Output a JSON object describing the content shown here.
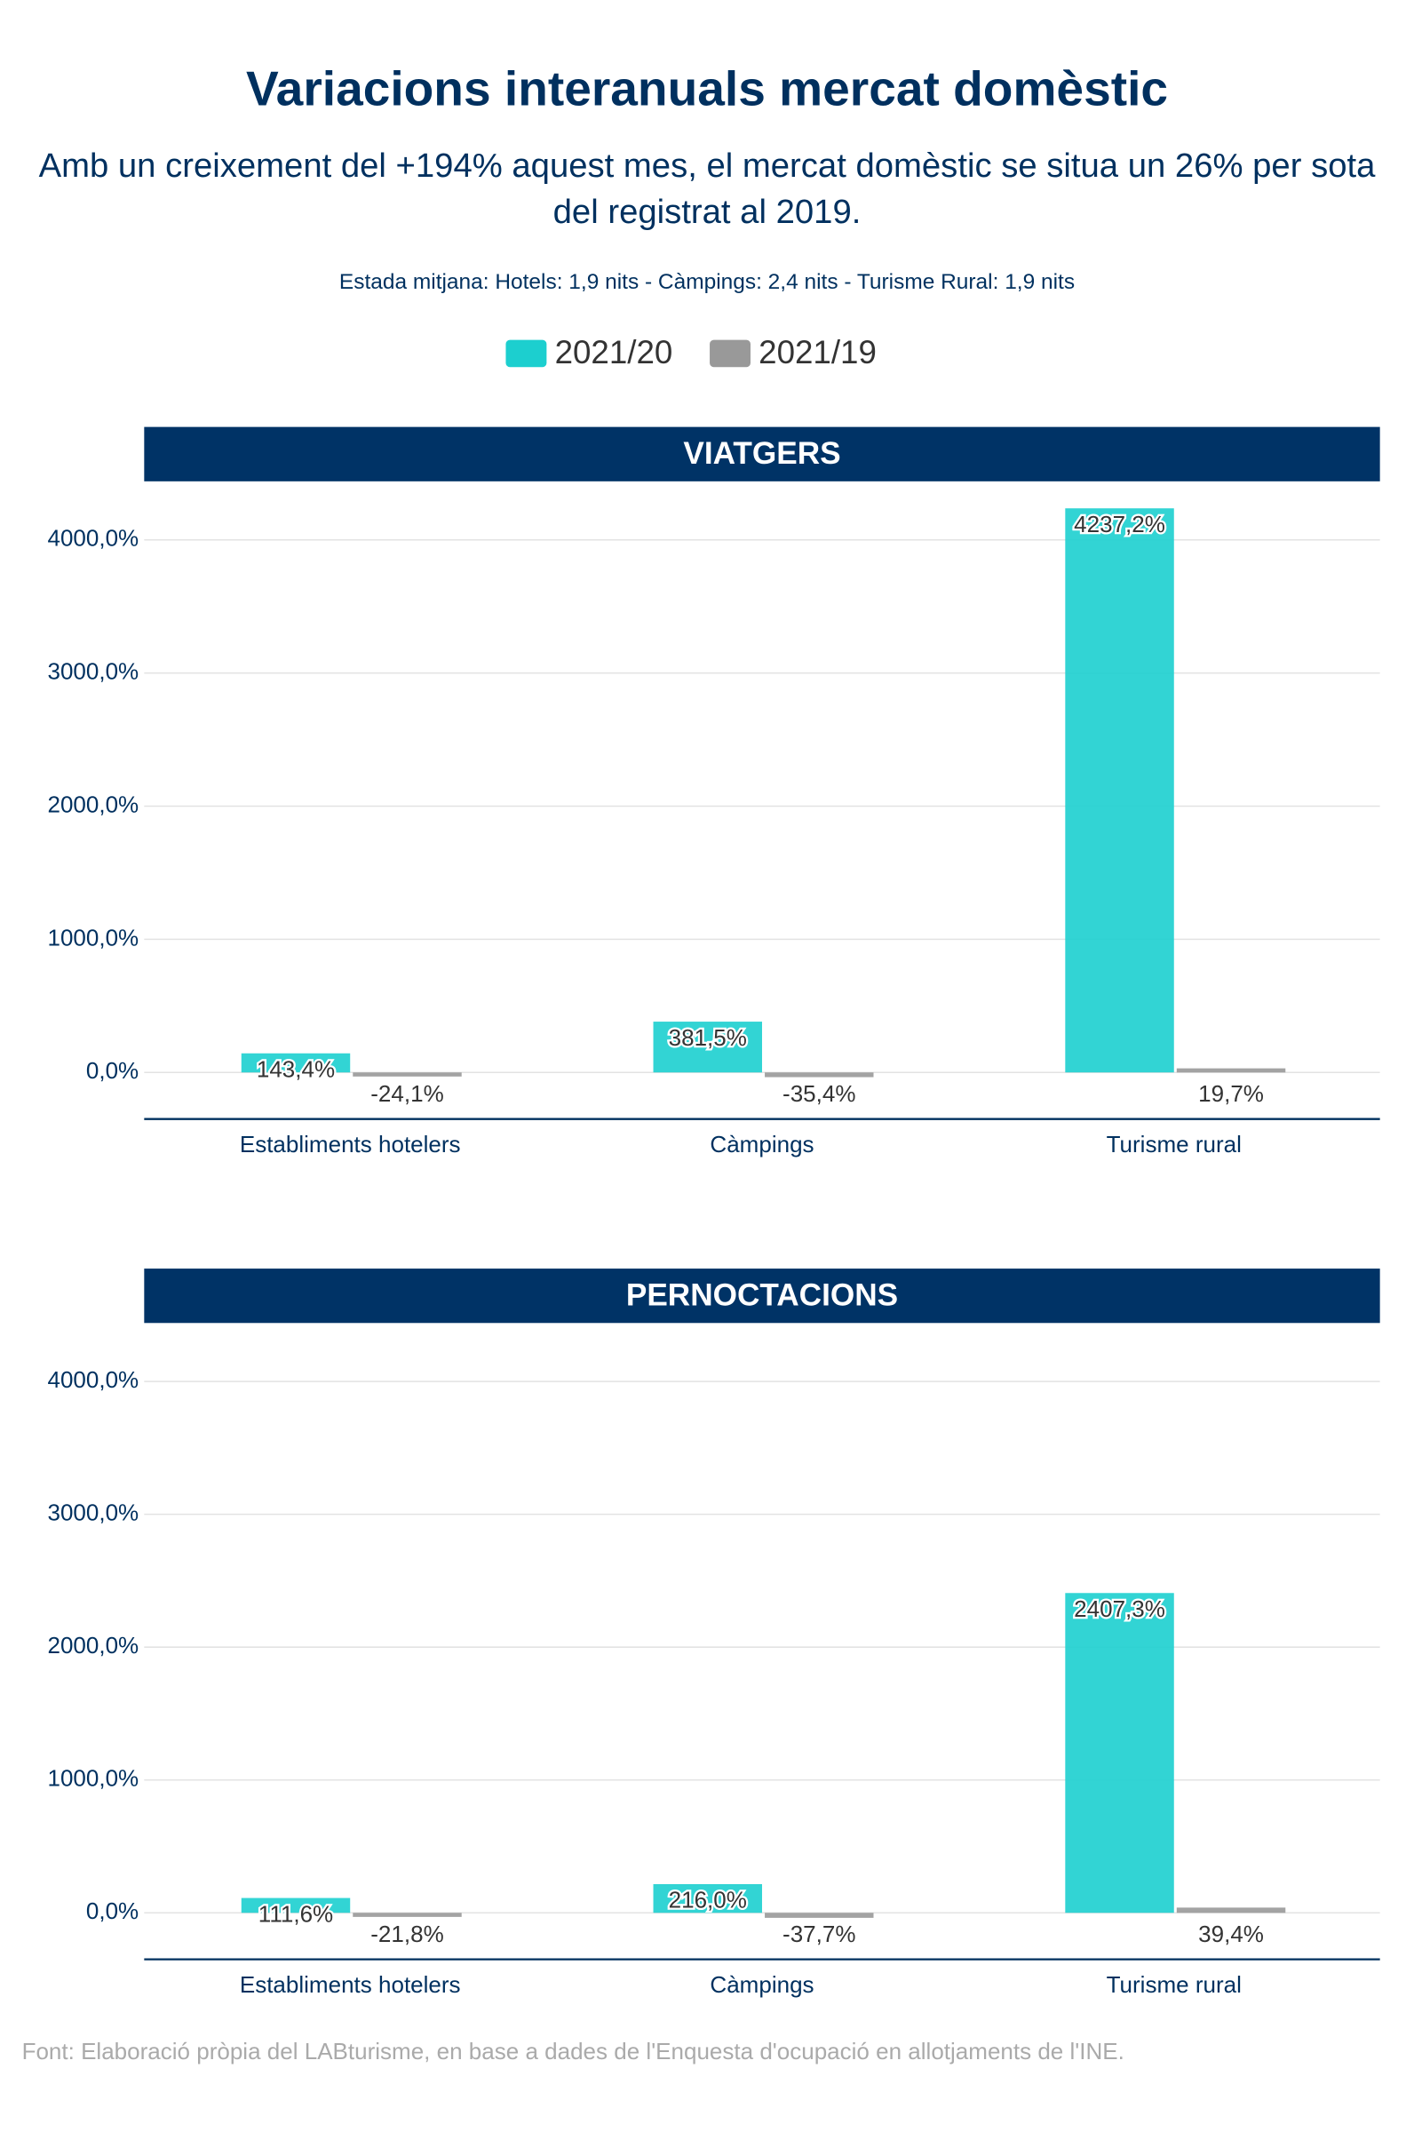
{
  "title": "Variacions interanuals mercat domèstic",
  "subtitle": "Amb un creixement del +194% aquest mes, el mercat domèstic se situa un 26% per sota del registrat al 2019.",
  "note": "Estada mitjana: Hotels: 1,9 nits - Càmpings: 2,4 nits - Turisme Rural: 1,9 nits",
  "source": "Font: Elaboració pròpia del LABturisme, en base a dades de l'Enquesta d'ocupació en allotjaments de l'INE.",
  "chart_data": [
    {
      "type": "bar",
      "title": "VIATGERS",
      "categories": [
        "Establiments hotelers",
        "Càmpings",
        "Turisme rural"
      ],
      "series": [
        {
          "name": "2021/20",
          "color": "#1ccfcf",
          "values": [
            143.4,
            381.5,
            4237.2
          ],
          "value_labels": [
            "143,4%",
            "381,5%",
            "4237,2%"
          ]
        },
        {
          "name": "2021/19",
          "color": "#999999",
          "values": [
            -24.1,
            -35.4,
            19.7
          ],
          "value_labels": [
            "-24,1%",
            "-35,4%",
            "19,7%"
          ]
        }
      ],
      "ylim": [
        -350,
        4440
      ],
      "yticks": [
        {
          "value": 0,
          "label": "0,0%"
        },
        {
          "value": 1000,
          "label": "1000,0%"
        },
        {
          "value": 2000,
          "label": "2000,0%"
        },
        {
          "value": 3000,
          "label": "3000,0%"
        },
        {
          "value": 4000,
          "label": "4000,0%"
        }
      ],
      "grid": true
    },
    {
      "type": "bar",
      "title": "PERNOCTACIONS",
      "categories": [
        "Establiments hotelers",
        "Càmpings",
        "Turisme rural"
      ],
      "series": [
        {
          "name": "2021/20",
          "color": "#1ccfcf",
          "values": [
            111.6,
            216.0,
            2407.3
          ],
          "value_labels": [
            "111,6%",
            "216,0%",
            "2407,3%"
          ]
        },
        {
          "name": "2021/19",
          "color": "#999999",
          "values": [
            -21.8,
            -37.7,
            39.4
          ],
          "value_labels": [
            "-21,8%",
            "-37,7%",
            "39,4%"
          ]
        }
      ],
      "ylim": [
        -350,
        4440
      ],
      "yticks": [
        {
          "value": 0,
          "label": "0,0%"
        },
        {
          "value": 1000,
          "label": "1000,0%"
        },
        {
          "value": 2000,
          "label": "2000,0%"
        },
        {
          "value": 3000,
          "label": "3000,0%"
        },
        {
          "value": 4000,
          "label": "4000,0%"
        }
      ],
      "grid": true
    }
  ]
}
